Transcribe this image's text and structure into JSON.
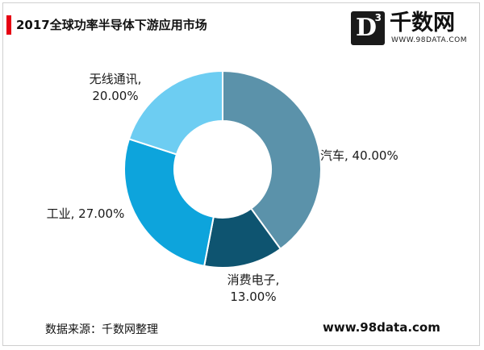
{
  "title": "2017全球功率半导体下游应用市场",
  "logo": {
    "mark": "D",
    "mark_sup": "3",
    "name": "千数网",
    "url": "WWW.98DATA.COM"
  },
  "footer": {
    "source": "数据来源：千数网整理",
    "url": "www.98data.com"
  },
  "chart_data": {
    "type": "pie",
    "donut": true,
    "categories": [
      "汽车",
      "消费电子",
      "工业",
      "无线通讯"
    ],
    "values": [
      40.0,
      13.0,
      27.0,
      20.0
    ],
    "labels": [
      [
        "汽车, 40.00%"
      ],
      [
        "消费电子,",
        "13.00%"
      ],
      [
        "工业, 27.00%"
      ],
      [
        "无线通讯,",
        "20.00%"
      ]
    ],
    "colors": [
      "#5b92aa",
      "#0e5470",
      "#0da4dc",
      "#6dcdf2"
    ]
  }
}
